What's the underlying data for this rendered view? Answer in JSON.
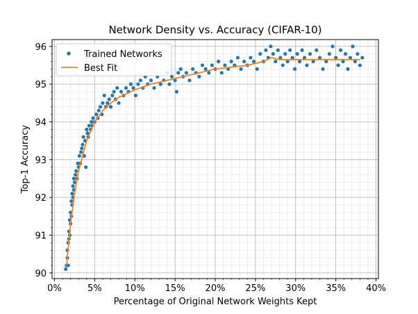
{
  "chart_data": {
    "type": "scatter",
    "title": "Network Density vs. Accuracy (CIFAR-10)",
    "xlabel": "Percentage of Original Network Weights Kept",
    "ylabel": "Top-1 Accuracy",
    "xlim": [
      -0.3,
      40.3
    ],
    "ylim": [
      89.85,
      96.18
    ],
    "x_ticks": [
      0,
      5,
      10,
      15,
      20,
      25,
      30,
      35,
      40
    ],
    "x_tick_labels": [
      "0%",
      "5%",
      "10%",
      "15%",
      "20%",
      "25%",
      "30%",
      "35%",
      "40%"
    ],
    "y_ticks": [
      90,
      91,
      92,
      93,
      94,
      95,
      96
    ],
    "y_tick_labels": [
      "90",
      "91",
      "92",
      "93",
      "94",
      "95",
      "96"
    ],
    "grid": true,
    "legend_position": "top-left",
    "series": [
      {
        "name": "Trained Networks",
        "kind": "scatter",
        "color": "#1f77b4",
        "points": [
          [
            1.4,
            90.1
          ],
          [
            1.5,
            90.2
          ],
          [
            1.6,
            90.4
          ],
          [
            1.6,
            90.6
          ],
          [
            1.7,
            90.2
          ],
          [
            1.7,
            90.8
          ],
          [
            1.8,
            90.9
          ],
          [
            1.8,
            91.1
          ],
          [
            1.9,
            91.0
          ],
          [
            1.9,
            91.4
          ],
          [
            2.0,
            91.3
          ],
          [
            2.0,
            91.6
          ],
          [
            2.1,
            91.5
          ],
          [
            2.1,
            91.9
          ],
          [
            2.2,
            91.8
          ],
          [
            2.2,
            92.1
          ],
          [
            2.3,
            92.0
          ],
          [
            2.3,
            92.3
          ],
          [
            2.4,
            92.2
          ],
          [
            2.4,
            92.5
          ],
          [
            2.5,
            92.4
          ],
          [
            2.6,
            92.6
          ],
          [
            2.7,
            92.7
          ],
          [
            2.8,
            92.5
          ],
          [
            2.9,
            92.9
          ],
          [
            3.0,
            92.8
          ],
          [
            3.1,
            93.1
          ],
          [
            3.2,
            92.9
          ],
          [
            3.3,
            93.2
          ],
          [
            3.4,
            93.3
          ],
          [
            3.5,
            93.4
          ],
          [
            3.6,
            93.6
          ],
          [
            3.7,
            93.1
          ],
          [
            3.8,
            93.5
          ],
          [
            3.9,
            92.8
          ],
          [
            4.0,
            93.8
          ],
          [
            4.1,
            93.7
          ],
          [
            4.2,
            93.6
          ],
          [
            4.3,
            93.9
          ],
          [
            4.5,
            93.8
          ],
          [
            4.6,
            94.0
          ],
          [
            4.7,
            93.9
          ],
          [
            4.8,
            94.1
          ],
          [
            5.0,
            94.0
          ],
          [
            5.2,
            94.2
          ],
          [
            5.4,
            94.1
          ],
          [
            5.5,
            94.3
          ],
          [
            5.7,
            94.4
          ],
          [
            5.9,
            94.2
          ],
          [
            6.0,
            94.5
          ],
          [
            6.2,
            94.7
          ],
          [
            6.4,
            94.4
          ],
          [
            6.6,
            94.5
          ],
          [
            6.8,
            94.6
          ],
          [
            7.0,
            94.4
          ],
          [
            7.2,
            94.7
          ],
          [
            7.4,
            94.8
          ],
          [
            7.6,
            94.6
          ],
          [
            7.8,
            94.9
          ],
          [
            8.0,
            94.5
          ],
          [
            8.3,
            94.8
          ],
          [
            8.6,
            94.7
          ],
          [
            8.9,
            94.9
          ],
          [
            9.2,
            94.8
          ],
          [
            9.5,
            95.0
          ],
          [
            9.8,
            94.9
          ],
          [
            10.1,
            94.7
          ],
          [
            10.4,
            95.0
          ],
          [
            10.7,
            95.1
          ],
          [
            11.0,
            94.9
          ],
          [
            11.3,
            95.2
          ],
          [
            11.6,
            95.0
          ],
          [
            12.0,
            95.1
          ],
          [
            12.4,
            94.9
          ],
          [
            12.8,
            95.2
          ],
          [
            13.2,
            95.0
          ],
          [
            13.6,
            95.1
          ],
          [
            14.0,
            95.3
          ],
          [
            14.3,
            95.0
          ],
          [
            14.6,
            95.2
          ],
          [
            15.0,
            95.1
          ],
          [
            15.2,
            94.8
          ],
          [
            15.4,
            95.3
          ],
          [
            15.7,
            95.4
          ],
          [
            16.0,
            95.2
          ],
          [
            16.4,
            95.3
          ],
          [
            16.8,
            95.1
          ],
          [
            17.2,
            95.4
          ],
          [
            17.6,
            95.3
          ],
          [
            18.0,
            95.2
          ],
          [
            18.4,
            95.5
          ],
          [
            18.8,
            95.4
          ],
          [
            19.2,
            95.3
          ],
          [
            19.6,
            95.5
          ],
          [
            20.0,
            95.4
          ],
          [
            20.4,
            95.6
          ],
          [
            20.8,
            95.3
          ],
          [
            21.2,
            95.5
          ],
          [
            21.6,
            95.4
          ],
          [
            22.0,
            95.6
          ],
          [
            22.4,
            95.5
          ],
          [
            22.8,
            95.7
          ],
          [
            23.2,
            95.4
          ],
          [
            23.6,
            95.6
          ],
          [
            24.0,
            95.5
          ],
          [
            24.4,
            95.7
          ],
          [
            24.8,
            95.6
          ],
          [
            25.2,
            95.4
          ],
          [
            25.6,
            95.8
          ],
          [
            26.0,
            95.6
          ],
          [
            26.3,
            95.9
          ],
          [
            26.6,
            95.7
          ],
          [
            26.9,
            96.0
          ],
          [
            27.2,
            95.8
          ],
          [
            27.5,
            95.6
          ],
          [
            27.8,
            95.9
          ],
          [
            28.1,
            95.7
          ],
          [
            28.4,
            95.5
          ],
          [
            28.7,
            95.8
          ],
          [
            29.0,
            95.6
          ],
          [
            29.3,
            95.9
          ],
          [
            29.6,
            95.7
          ],
          [
            29.9,
            95.4
          ],
          [
            30.2,
            95.8
          ],
          [
            30.5,
            95.6
          ],
          [
            30.8,
            95.9
          ],
          [
            31.1,
            95.7
          ],
          [
            31.4,
            95.5
          ],
          [
            31.8,
            95.8
          ],
          [
            32.2,
            95.6
          ],
          [
            32.6,
            95.9
          ],
          [
            33.0,
            95.7
          ],
          [
            33.4,
            95.4
          ],
          [
            33.8,
            95.6
          ],
          [
            34.2,
            95.8
          ],
          [
            34.6,
            96.0
          ],
          [
            35.0,
            95.7
          ],
          [
            35.3,
            95.5
          ],
          [
            35.6,
            95.9
          ],
          [
            35.9,
            95.6
          ],
          [
            36.2,
            95.8
          ],
          [
            36.5,
            95.4
          ],
          [
            36.8,
            95.7
          ],
          [
            37.1,
            96.0
          ],
          [
            37.4,
            95.6
          ],
          [
            37.7,
            95.8
          ],
          [
            38.0,
            95.5
          ],
          [
            38.3,
            95.7
          ]
        ]
      },
      {
        "name": "Best Fit",
        "kind": "line",
        "color": "#ff7f0e",
        "points": [
          [
            1.5,
            90.2
          ],
          [
            2.0,
            91.3
          ],
          [
            2.5,
            92.1
          ],
          [
            3.0,
            92.7
          ],
          [
            3.5,
            93.1
          ],
          [
            4.0,
            93.5
          ],
          [
            5.0,
            94.0
          ],
          [
            6.0,
            94.3
          ],
          [
            7.0,
            94.5
          ],
          [
            8.0,
            94.65
          ],
          [
            9.0,
            94.75
          ],
          [
            10.0,
            94.85
          ],
          [
            12.0,
            95.0
          ],
          [
            14.0,
            95.1
          ],
          [
            16.0,
            95.2
          ],
          [
            18.0,
            95.3
          ],
          [
            20.0,
            95.4
          ],
          [
            22.0,
            95.45
          ],
          [
            24.0,
            95.5
          ],
          [
            26.0,
            95.6
          ],
          [
            27.0,
            95.7
          ],
          [
            28.0,
            95.65
          ],
          [
            30.0,
            95.65
          ],
          [
            32.0,
            95.65
          ],
          [
            34.0,
            95.65
          ],
          [
            36.0,
            95.65
          ],
          [
            38.0,
            95.65
          ]
        ]
      }
    ]
  }
}
